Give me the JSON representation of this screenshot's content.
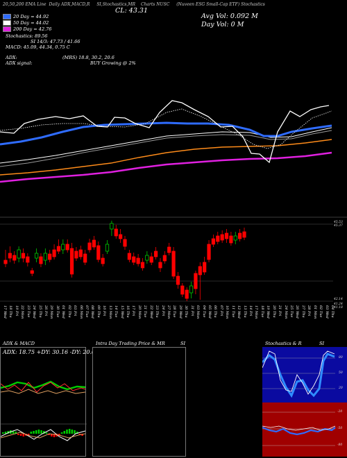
{
  "header": {
    "title_segments": [
      "20,50,200 EMA Line",
      "Daily ADX,MACD,R",
      "SI,Stochastics,MR",
      "Charts NUSC",
      "(Nuveen ESG Small-Cap ETF) Stochastics"
    ],
    "cl_label": "CL: 43.31",
    "avg_vol": "Avg Vol: 0.092  M",
    "day_vol": "Day Vol: 0   M"
  },
  "legend": {
    "ema20": {
      "label": "20  Day = 44.92",
      "color": "#2f6cff"
    },
    "ema50": {
      "label": "50  Day = 44.02",
      "color": "#ffffff"
    },
    "ema200": {
      "label": "200  Day = 42.76",
      "color": "#e020e0"
    },
    "stoch": "Stochastics: 89.56",
    "si": "SI 14/3: 47.73 / 41.66",
    "macd": "MACD: 45.09, 44.34, 0.75 C",
    "adx": "ADX:",
    "adx_signal": "ADX signal:",
    "mrs": "(MRS) 18.8,  30.2,  20.6",
    "buy": "BUY Growing @ 2%"
  },
  "price_labels": [
    "45.53",
    "45.37",
    "42.14",
    "41.24",
    "41.18"
  ],
  "date_labels": [
    "17 Wed",
    "18 Thu",
    "19 Fri",
    "22 Mon",
    "23 Tue",
    "24 Wed",
    "25 Thu",
    "26 Fri",
    "29 Mon",
    "30 Tue",
    "01 Wed",
    "02 Thu",
    "03 Fri",
    "06 Mon",
    "07 Tue",
    "08 Wed",
    "09 Thu",
    "10 Fri",
    "13 Mon",
    "14 Tue",
    "15 Wed",
    "16 Thu",
    "17 Fri",
    "20 Mon",
    "21 Tue",
    "22 Wed",
    "23 Thu",
    "24 Fri",
    "27 Mon",
    "28 Tue",
    "29 Wed",
    "30 Thu",
    "31 Fri",
    "03 Mon",
    "04 Tue",
    "05 Wed",
    "06 Thu",
    "07 Fri",
    "10 Mon",
    "11 Tue",
    "12 Wed",
    "13 Thu",
    "14 Fri",
    "17 Mon",
    "18 Tue",
    "19 Wed",
    "20 Thu",
    "21 Fri",
    "24 Mon",
    "25 Tue",
    "26 Wed",
    "27 Thu",
    "28 Fri",
    "01 Mon",
    "02 Tue",
    "03 Wed",
    "04 Thu"
  ],
  "panels": {
    "adx_title": "ADX  & MACD",
    "adx_values": "ADX: 18.75  +DY: 30.16  -DY: 20.63",
    "mr_title": "Intra  Day Trading Price  & MR",
    "si_title": "SI",
    "stoch_title": "Stochastics & R",
    "stoch_ticks": [
      "80",
      "50",
      "20"
    ],
    "r_ticks": [
      "-20",
      "-50",
      "-80"
    ]
  },
  "colors": {
    "up": "#00cc00",
    "down": "#ff0000",
    "ema20": "#2f6cff",
    "ema50": "#ffffff",
    "ema200": "#e020e0",
    "orange": "#ff8c1a"
  }
}
